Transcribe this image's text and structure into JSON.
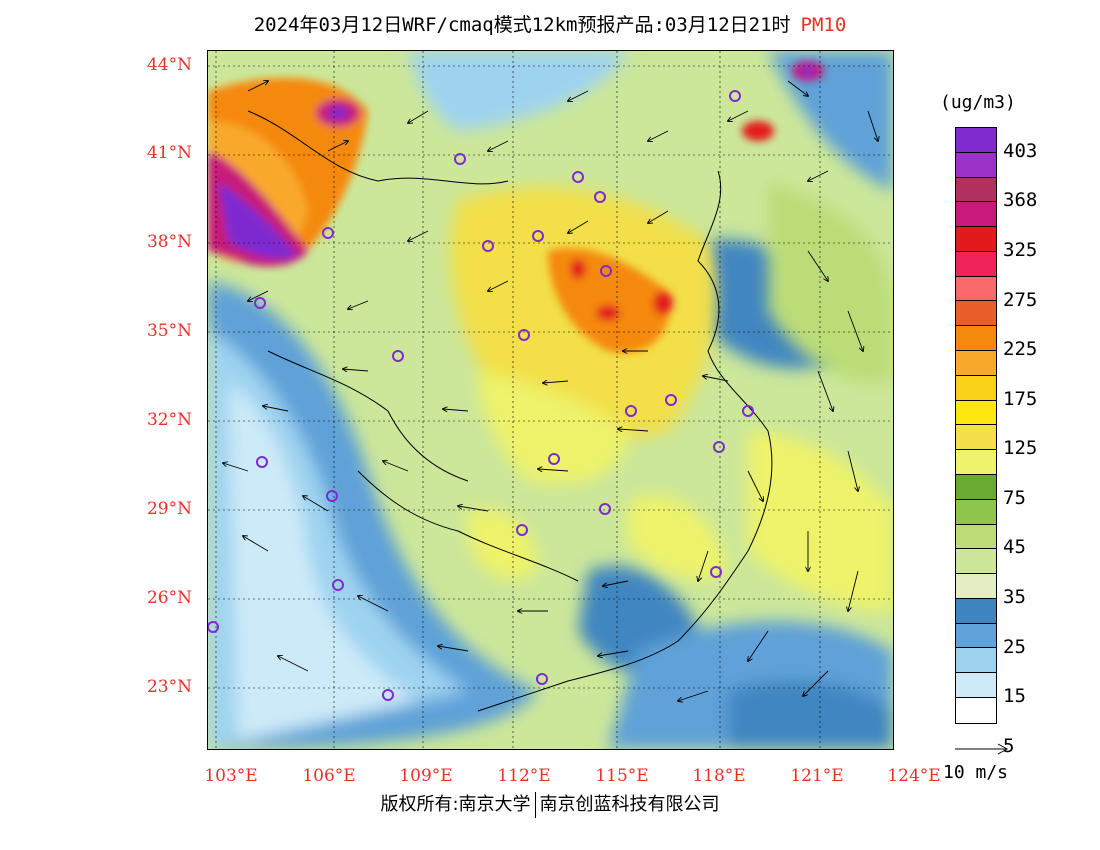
{
  "title": {
    "main": "2024年03月12日WRF/cmaq模式12km预报产品:03月12日21时",
    "variable": "PM10",
    "variable_color": "#e8302a"
  },
  "map": {
    "lat_labels": [
      "44°N",
      "41°N",
      "38°N",
      "35°N",
      "32°N",
      "29°N",
      "26°N",
      "23°N"
    ],
    "lon_labels": [
      "103°E",
      "106°E",
      "109°E",
      "112°E",
      "115°E",
      "118°E",
      "121°E",
      "124°E"
    ],
    "label_color": "#e8302a"
  },
  "legend": {
    "unit": "(ug/m3)",
    "labels": [
      "403",
      "368",
      "325",
      "275",
      "225",
      "175",
      "125",
      "75",
      "45",
      "35",
      "25",
      "15",
      "5"
    ],
    "colors": [
      "#7f2bd0",
      "#9b33c9",
      "#b13060",
      "#c81a7a",
      "#e31a1c",
      "#f0245a",
      "#fb6a6a",
      "#e95f2a",
      "#f5890e",
      "#f8a92a",
      "#fbd21a",
      "#fde710",
      "#f2df4a",
      "#eef36a",
      "#6aaa33",
      "#8fc54a",
      "#bcdc78",
      "#cce79a",
      "#e3efc2",
      "#3f86c1",
      "#5fa1d8",
      "#9ed3f0",
      "#cdeaf8",
      "#ffffff"
    ]
  },
  "vector_reference": {
    "label": "10 m/s"
  },
  "footer": {
    "left": "版权所有:南京大学",
    "right": "南京创蓝科技有限公司"
  }
}
